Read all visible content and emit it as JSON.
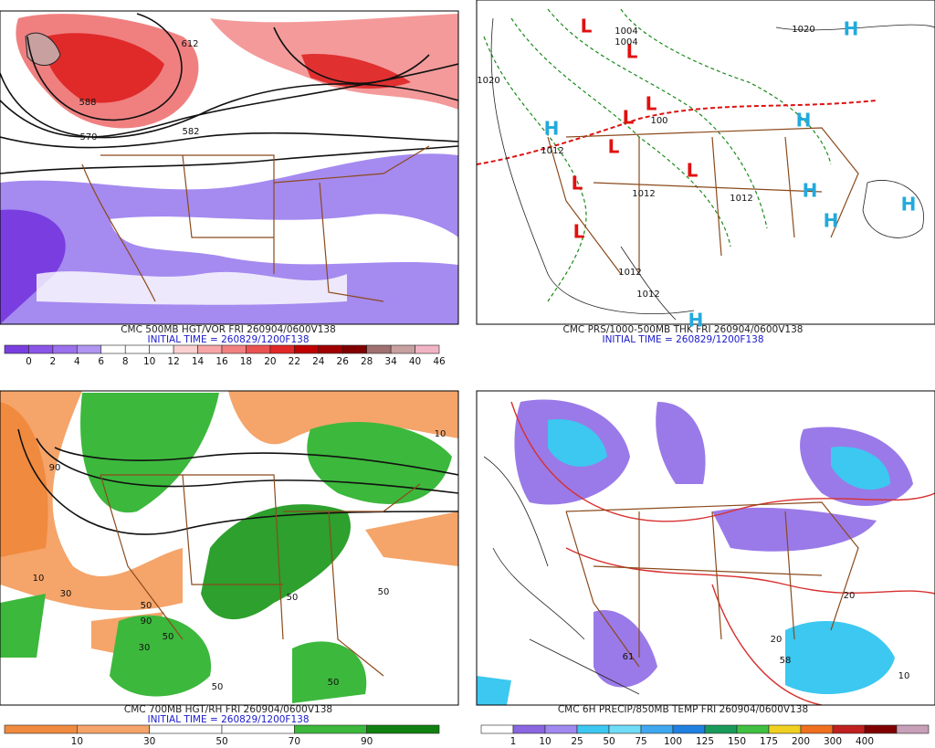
{
  "panels": [
    {
      "title": "CMC 500MB HGT/VOR FRI 260904/0600V138",
      "subtitle": "INITIAL TIME = 260829/1200F138",
      "scale": [
        {
          "label": "0",
          "color": "#7a3ee0"
        },
        {
          "label": "2",
          "color": "#8b55e8"
        },
        {
          "label": "4",
          "color": "#9a70ec"
        },
        {
          "label": "6",
          "color": "#b095f0"
        },
        {
          "label": "8",
          "color": "#ffffff"
        },
        {
          "label": "10",
          "color": "#ffffff"
        },
        {
          "label": "12",
          "color": "#ffffff"
        },
        {
          "label": "14",
          "color": "#fbd0d0"
        },
        {
          "label": "16",
          "color": "#f6a6a6"
        },
        {
          "label": "18",
          "color": "#f28080"
        },
        {
          "label": "20",
          "color": "#ea5252"
        },
        {
          "label": "22",
          "color": "#e02828"
        },
        {
          "label": "24",
          "color": "#c00000"
        },
        {
          "label": "26",
          "color": "#a00000"
        },
        {
          "label": "28",
          "color": "#800000"
        },
        {
          "label": "34",
          "color": "#a07070"
        },
        {
          "label": "40",
          "color": "#c8a0a0"
        },
        {
          "label": "46",
          "color": "#f0b4c4"
        }
      ],
      "map_labels": [
        "588",
        "570",
        "582",
        "612"
      ]
    },
    {
      "title": "CMC PRS/1000-500MB THK FRI 260904/0600V138",
      "subtitle": "INITIAL TIME = 260829/1200F138",
      "scale": [],
      "map_labels": [
        "L",
        "L",
        "L",
        "L",
        "L",
        "L",
        "L",
        "L",
        "H",
        "H",
        "H",
        "H",
        "H",
        "H",
        "H",
        "1020",
        "1020",
        "1004",
        "1004",
        "1012",
        "1012",
        "1012",
        "1012",
        "1012",
        "100"
      ]
    },
    {
      "title": "CMC 700MB HGT/RH FRI 260904/0600V138",
      "subtitle": "INITIAL TIME = 260829/1200F138",
      "scale": [
        {
          "label": "10",
          "color": "#f08a3e"
        },
        {
          "label": "30",
          "color": "#f5a46a"
        },
        {
          "label": "50",
          "color": "#ffffff"
        },
        {
          "label": "70",
          "color": "#ffffff"
        },
        {
          "label": "90",
          "color": "#3cb83c"
        },
        {
          "label": "",
          "color": "#108010"
        }
      ],
      "map_labels": [
        "50",
        "50",
        "50",
        "50",
        "90",
        "90",
        "10",
        "10",
        "30",
        "30",
        "50",
        "50"
      ]
    },
    {
      "title": "CMC 6H PRECIP/850MB TEMP FRI 260904/0600V138",
      "subtitle": "",
      "scale": [
        {
          "label": "1",
          "color": "#ffffff"
        },
        {
          "label": "10",
          "color": "#8a66e0"
        },
        {
          "label": "25",
          "color": "#a08af0"
        },
        {
          "label": "50",
          "color": "#3cc8f0"
        },
        {
          "label": "75",
          "color": "#70dcf8"
        },
        {
          "label": "100",
          "color": "#40a8f0"
        },
        {
          "label": "125",
          "color": "#2080e0"
        },
        {
          "label": "150",
          "color": "#1a9a5a"
        },
        {
          "label": "175",
          "color": "#40c040"
        },
        {
          "label": "200",
          "color": "#f0d020"
        },
        {
          "label": "300",
          "color": "#f07020"
        },
        {
          "label": "400",
          "color": "#c02020"
        },
        {
          "label": "",
          "color": "#800000"
        },
        {
          "label": "",
          "color": "#c8a0b8"
        }
      ],
      "map_labels": [
        "20",
        "20",
        "10",
        "58",
        "61"
      ]
    }
  ]
}
